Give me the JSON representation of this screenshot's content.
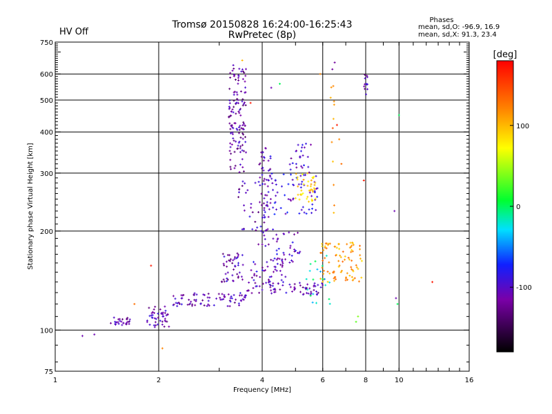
{
  "header": {
    "status": "HV Off",
    "status_color": "#cc0000",
    "title_line1": "Tromsø 20150828 16:24:00-16:25:43",
    "title_line2": "RwPretec (8p)",
    "phase_heading": "Phases",
    "phase_line1": "mean, sd,O:  -96.9, 16.9",
    "phase_line2": "mean, sd,X:  91.3, 23.4"
  },
  "colorbar": {
    "unit": "[deg]",
    "min": -180,
    "max": 180,
    "ticks": [
      {
        "value": 100,
        "label": "100"
      },
      {
        "value": 0,
        "label": "0"
      },
      {
        "value": -100,
        "label": "-100"
      }
    ],
    "colors": [
      "#000000",
      "#7a00a8",
      "#1020ff",
      "#00e0ff",
      "#00ff30",
      "#ffff00",
      "#ff7f00",
      "#ff0000"
    ]
  },
  "chart_data": {
    "type": "scatter",
    "title": "Tromsø 20150828 16:24:00-16:25:43",
    "subtitle": "RwPretec (8p)",
    "xlabel": "Frequency [MHz]",
    "ylabel": "Stationary phase Virtual Height [km]",
    "x_scale": "log",
    "y_scale": "log",
    "xlim": [
      1,
      16
    ],
    "ylim": [
      75,
      750
    ],
    "x_ticks": [
      1,
      2,
      4,
      6,
      8,
      10,
      16
    ],
    "x_tick_labels": [
      "1",
      "2",
      "4",
      "6",
      "8",
      "10",
      "16"
    ],
    "y_ticks": [
      75,
      100,
      200,
      300,
      400,
      500,
      600,
      750
    ],
    "y_tick_labels": [
      "75",
      "100",
      "200",
      "300",
      "400",
      "500",
      "600",
      "750"
    ],
    "x_grid": [
      2,
      4,
      6,
      8,
      10
    ],
    "y_grid": [
      100,
      200,
      300,
      400,
      500,
      600
    ],
    "color_dimension": "phase [deg]",
    "series": [
      {
        "clusters": [
          {
            "x": [
              1.45,
              1.65
            ],
            "y": [
              103,
              110
            ],
            "n": 28,
            "phase": -110
          },
          {
            "x": [
              1.85,
              2.15
            ],
            "y": [
              102,
              118
            ],
            "n": 45,
            "phase": -110
          },
          {
            "x": [
              2.2,
              3.6
            ],
            "y": [
              118,
              130
            ],
            "n": 80,
            "phase": -110
          },
          {
            "x": [
              3.6,
              6.0
            ],
            "y": [
              128,
              140
            ],
            "n": 70,
            "phase": -110
          },
          {
            "x": [
              3.05,
              3.55
            ],
            "y": [
              140,
              175
            ],
            "n": 45,
            "phase": -110
          },
          {
            "x": [
              3.2,
              3.6
            ],
            "y": [
              300,
              640
            ],
            "n": 130,
            "phase": -115
          },
          {
            "x": [
              3.4,
              4.2
            ],
            "y": [
              200,
              290
            ],
            "n": 40,
            "phase": -110
          },
          {
            "x": [
              3.9,
              4.3
            ],
            "y": [
              180,
              360
            ],
            "n": 55,
            "phase": -105
          },
          {
            "x": [
              4.3,
              5.2
            ],
            "y": [
              160,
              200
            ],
            "n": 35,
            "phase": -100
          },
          {
            "x": [
              4.2,
              5.8
            ],
            "y": [
              225,
              300
            ],
            "n": 60,
            "phase": -90
          },
          {
            "x": [
              4.8,
              5.6
            ],
            "y": [
              300,
              370
            ],
            "n": 25,
            "phase": -100
          },
          {
            "x": [
              3.7,
              4.7
            ],
            "y": [
              140,
              165
            ],
            "n": 40,
            "phase": -105
          },
          {
            "x": [
              5.0,
              5.8
            ],
            "y": [
              245,
              300
            ],
            "n": 40,
            "phase": 90
          },
          {
            "x": [
              5.9,
              7.8
            ],
            "y": [
              140,
              185
            ],
            "n": 90,
            "phase": 110
          },
          {
            "x": [
              5.3,
              6.3
            ],
            "y": [
              115,
              170
            ],
            "n": 20,
            "phase": -20
          },
          {
            "x": [
              7.9,
              8.1
            ],
            "y": [
              520,
              600
            ],
            "n": 12,
            "phase": -115
          },
          {
            "x": [
              6.3,
              6.5
            ],
            "y": [
              200,
              560
            ],
            "n": 12,
            "phase": 120
          }
        ],
        "points": [
          {
            "x": 1.3,
            "y": 97,
            "phase": -110
          },
          {
            "x": 1.2,
            "y": 96,
            "phase": -110
          },
          {
            "x": 6.4,
            "y": 620,
            "phase": -120
          },
          {
            "x": 6.5,
            "y": 650,
            "phase": -120
          },
          {
            "x": 4.5,
            "y": 560,
            "phase": 0
          },
          {
            "x": 4.25,
            "y": 545,
            "phase": -110
          },
          {
            "x": 3.7,
            "y": 490,
            "phase": 170
          },
          {
            "x": 3.5,
            "y": 660,
            "phase": 100
          },
          {
            "x": 10.0,
            "y": 450,
            "phase": 0
          },
          {
            "x": 9.7,
            "y": 230,
            "phase": -110
          },
          {
            "x": 7.9,
            "y": 285,
            "phase": 170
          },
          {
            "x": 12.5,
            "y": 140,
            "phase": 170
          },
          {
            "x": 9.8,
            "y": 125,
            "phase": -110
          },
          {
            "x": 9.9,
            "y": 120,
            "phase": 0
          },
          {
            "x": 7.6,
            "y": 110,
            "phase": 40
          },
          {
            "x": 7.5,
            "y": 106,
            "phase": 30
          },
          {
            "x": 2.05,
            "y": 88,
            "phase": 120
          },
          {
            "x": 1.9,
            "y": 157,
            "phase": 170
          },
          {
            "x": 1.7,
            "y": 120,
            "phase": 130
          },
          {
            "x": 6.6,
            "y": 420,
            "phase": 170
          },
          {
            "x": 6.7,
            "y": 380,
            "phase": 120
          },
          {
            "x": 6.8,
            "y": 320,
            "phase": 130
          },
          {
            "x": 5.9,
            "y": 600,
            "phase": 120
          }
        ]
      }
    ]
  }
}
